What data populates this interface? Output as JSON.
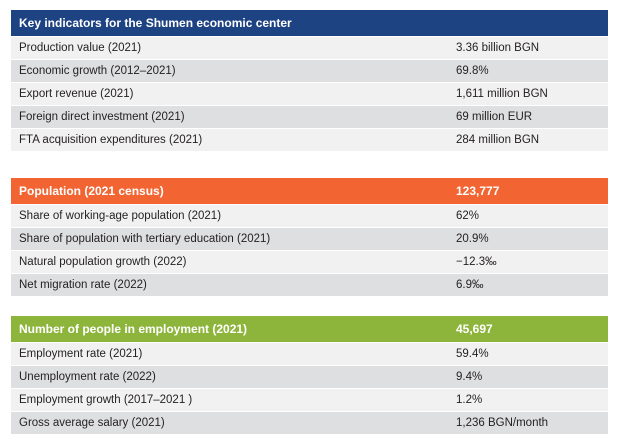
{
  "colors": {
    "section1_header": "#1e4383",
    "section2_header": "#f26532",
    "section3_header": "#8db53c",
    "row_light": "#f1f1f2",
    "row_dark": "#dedfe0"
  },
  "sections": [
    {
      "title": "Key indicators for the Shumen economic center",
      "value": "",
      "rows": [
        {
          "label": "Production value (2021)",
          "value": "3.36 billion BGN"
        },
        {
          "label": "Economic growth (2012–2021)",
          "value": "69.8%"
        },
        {
          "label": "Export revenue (2021)",
          "value": "1,611 million BGN"
        },
        {
          "label": "Foreign direct investment (2021)",
          "value": "69 million EUR"
        },
        {
          "label": "FTA acquisition expenditures (2021)",
          "value": "284 million BGN"
        }
      ]
    },
    {
      "title": "Population (2021 census)",
      "value": "123,777",
      "rows": [
        {
          "label": "Share of working-age population (2021)",
          "value": "62%"
        },
        {
          "label": "Share of population with tertiary education (2021)",
          "value": "20.9%"
        },
        {
          "label": "Natural population growth (2022)",
          "value": "−12.3‰"
        },
        {
          "label": "Net migration rate (2022)",
          "value": "6.9‰"
        }
      ]
    },
    {
      "title": "Number of people in employment (2021)",
      "value": "45,697",
      "rows": [
        {
          "label": "Employment rate (2021)",
          "value": "59.4%"
        },
        {
          "label": "Unemployment rate (2022)",
          "value": "9.4%"
        },
        {
          "label": "Employment growth (2017–2021 )",
          "value": "1.2%"
        },
        {
          "label": "Gross average salary (2021)",
          "value": "1,236 BGN/month"
        }
      ]
    }
  ]
}
